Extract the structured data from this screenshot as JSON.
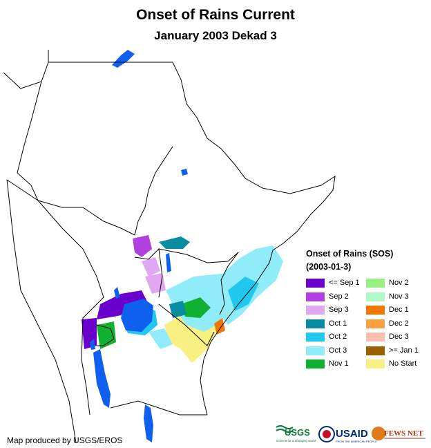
{
  "map": {
    "title": "Onset of Rains Current",
    "subtitle": "January 2003 Dekad 3",
    "credit": "Map produced by USGS/EROS"
  },
  "legend": {
    "title": "Onset of Rains (SOS)",
    "subtitle": "(2003-01-3)",
    "items": [
      {
        "label": "<= Sep 1",
        "color": "#6a00cc"
      },
      {
        "label": "Sep 2",
        "color": "#b040e0"
      },
      {
        "label": "Sep 3",
        "color": "#e0a8f0"
      },
      {
        "label": "Oct 1",
        "color": "#0a8ca0"
      },
      {
        "label": "Oct 2",
        "color": "#20c8f0"
      },
      {
        "label": "Oct 3",
        "color": "#90ecf8"
      },
      {
        "label": "Nov 1",
        "color": "#10b030"
      },
      {
        "label": "Nov 2",
        "color": "#98f080"
      },
      {
        "label": "Nov 3",
        "color": "#b0f8c8"
      },
      {
        "label": "Dec 1",
        "color": "#f07800"
      },
      {
        "label": "Dec 2",
        "color": "#f8a040"
      },
      {
        "label": "Dec 3",
        "color": "#f8c0b0"
      },
      {
        "label": ">= Jan 1",
        "color": "#9a6000"
      },
      {
        "label": "No Start",
        "color": "#f8f080"
      }
    ]
  },
  "logos": {
    "usgs": "USGS",
    "usgs_tagline": "science for a changing world",
    "usaid": "USAID",
    "usaid_tagline": "FROM THE AMERICAN PEOPLE",
    "fews": "FEWS NET"
  },
  "colors": {
    "water": "#1060f0",
    "border": "#000000"
  }
}
